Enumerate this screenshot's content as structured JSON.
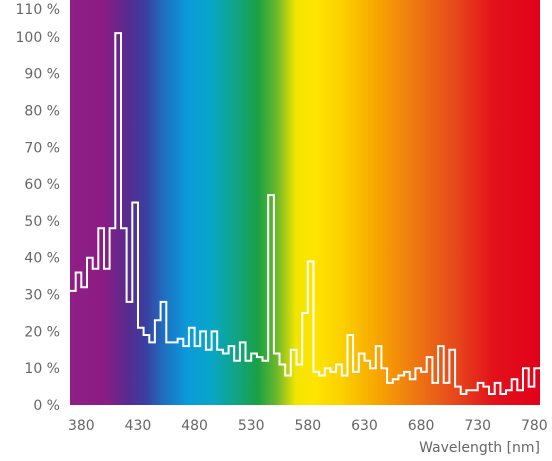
{
  "chart_data": {
    "type": "line",
    "xlabel": "Wavelength [nm]",
    "ylabel": "",
    "xlim": [
      370,
      785
    ],
    "ylim": [
      0,
      110
    ],
    "x_ticks": [
      {
        "value": 380,
        "label": "380"
      },
      {
        "value": 430,
        "label": "430"
      },
      {
        "value": 480,
        "label": "480"
      },
      {
        "value": 530,
        "label": "530"
      },
      {
        "value": 580,
        "label": "580"
      },
      {
        "value": 630,
        "label": "630"
      },
      {
        "value": 680,
        "label": "680"
      },
      {
        "value": 730,
        "label": "730"
      },
      {
        "value": 780,
        "label": "780"
      }
    ],
    "y_ticks": [
      {
        "value": 0,
        "label": "0 %"
      },
      {
        "value": 10,
        "label": "10 %"
      },
      {
        "value": 20,
        "label": "20 %"
      },
      {
        "value": 30,
        "label": "30 %"
      },
      {
        "value": 40,
        "label": "40 %"
      },
      {
        "value": 50,
        "label": "50 %"
      },
      {
        "value": 60,
        "label": "60 %"
      },
      {
        "value": 70,
        "label": "70 %"
      },
      {
        "value": 80,
        "label": "80 %"
      },
      {
        "value": 90,
        "label": "90 %"
      },
      {
        "value": 100,
        "label": "100 %"
      },
      {
        "value": 110,
        "label": "110 %"
      }
    ],
    "grid": false,
    "background": "visible spectrum gradient",
    "line_color": "#ffffff",
    "series": [
      {
        "step": 5,
        "x": [
          370,
          375,
          380,
          385,
          390,
          395,
          400,
          405,
          410,
          415,
          420,
          425,
          430,
          435,
          440,
          445,
          450,
          455,
          460,
          465,
          470,
          475,
          480,
          485,
          490,
          495,
          500,
          505,
          510,
          515,
          520,
          525,
          530,
          535,
          540,
          545,
          550,
          555,
          560,
          565,
          570,
          575,
          580,
          585,
          590,
          595,
          600,
          605,
          610,
          615,
          620,
          625,
          630,
          635,
          640,
          645,
          650,
          655,
          660,
          665,
          670,
          675,
          680,
          685,
          690,
          695,
          700,
          705,
          710,
          715,
          720,
          725,
          730,
          735,
          740,
          745,
          750,
          755,
          760,
          765,
          770,
          775,
          780
        ],
        "values": [
          31,
          36,
          32,
          40,
          37,
          48,
          37,
          48,
          101,
          48,
          28,
          55,
          21,
          19,
          17,
          23,
          28,
          17,
          17,
          18,
          16,
          21,
          16,
          20,
          15,
          20,
          15,
          14,
          16,
          12,
          17,
          12,
          14,
          13,
          12,
          57,
          14,
          11,
          8,
          15,
          11,
          25,
          39,
          9,
          8,
          10,
          9,
          11,
          8,
          19,
          9,
          14,
          12,
          10,
          16,
          10,
          6,
          7,
          8,
          9,
          7,
          10,
          9,
          13,
          6,
          16,
          6,
          15,
          5,
          3,
          4,
          4,
          6,
          5,
          3,
          6,
          3,
          4,
          7,
          4,
          10,
          5,
          10
        ]
      }
    ]
  }
}
